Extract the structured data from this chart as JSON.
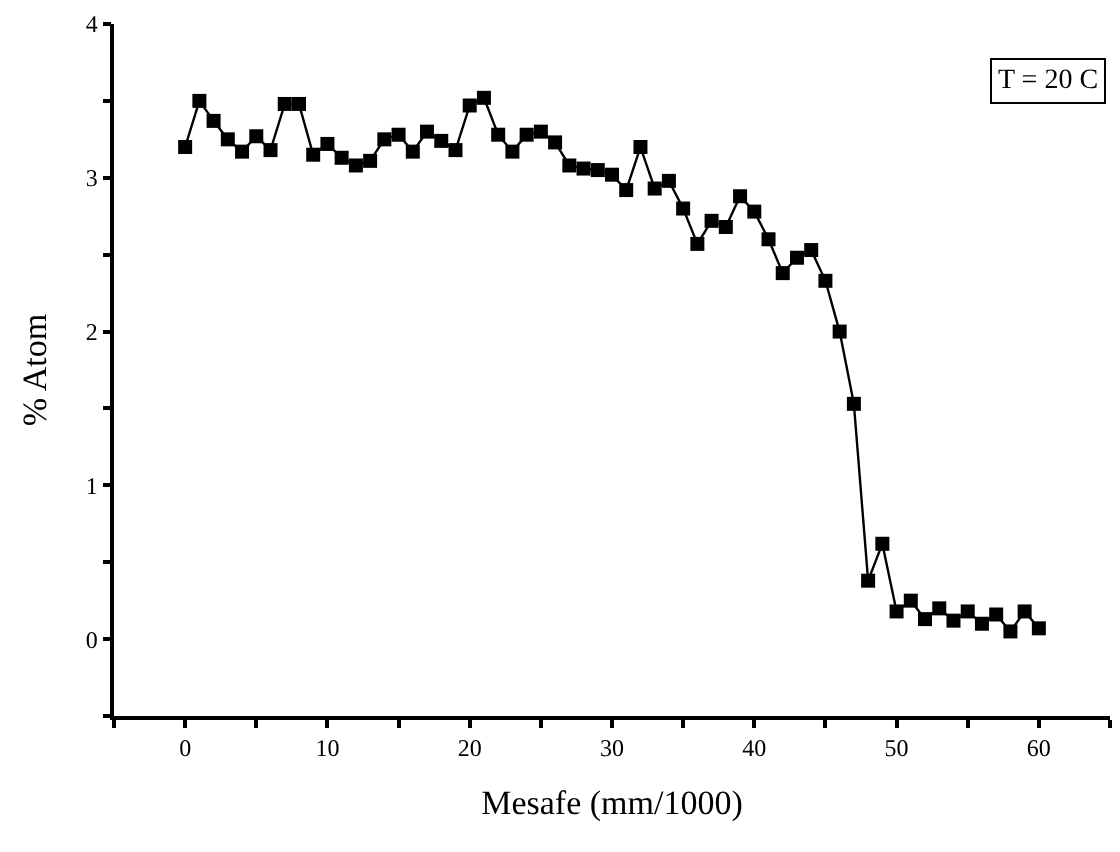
{
  "chart_data": {
    "type": "line",
    "xlabel": "Mesafe (mm/1000)",
    "ylabel": "% Atom",
    "annotations": [
      "T = 20 C"
    ],
    "x": [
      0,
      1,
      2,
      3,
      4,
      5,
      6,
      7,
      8,
      9,
      10,
      11,
      12,
      13,
      14,
      15,
      16,
      17,
      18,
      19,
      20,
      21,
      22,
      23,
      24,
      25,
      26,
      27,
      28,
      29,
      30,
      31,
      32,
      33,
      34,
      35,
      36,
      37,
      38,
      39,
      40,
      41,
      42,
      43,
      44,
      45,
      46,
      47,
      48,
      49,
      50,
      51,
      52,
      53,
      54,
      55,
      56,
      57,
      58,
      59,
      60
    ],
    "series": [
      {
        "color": "#000000",
        "values": [
          3.2,
          3.5,
          3.37,
          3.25,
          3.17,
          3.27,
          3.18,
          3.48,
          3.48,
          3.15,
          3.22,
          3.13,
          3.08,
          3.11,
          3.25,
          3.28,
          3.17,
          3.3,
          3.24,
          3.18,
          3.47,
          3.52,
          3.28,
          3.17,
          3.28,
          3.3,
          3.23,
          3.08,
          3.06,
          3.05,
          3.02,
          2.92,
          3.2,
          2.93,
          2.98,
          2.8,
          2.57,
          2.72,
          2.68,
          2.88,
          2.78,
          2.6,
          2.38,
          2.48,
          2.53,
          2.33,
          2.0,
          1.53,
          0.38,
          0.62,
          0.18,
          0.25,
          0.13,
          0.2,
          0.12,
          0.18,
          0.1,
          0.16,
          0.05,
          0.18,
          0.07
        ]
      }
    ],
    "marker": "square",
    "line_style": "solid",
    "xlim": [
      -5,
      65
    ],
    "xticks": [
      {
        "value": -5,
        "label": null
      },
      0,
      {
        "value": 5,
        "label": null
      },
      10,
      {
        "value": 15,
        "label": null
      },
      20,
      {
        "value": 25,
        "label": null
      },
      30,
      {
        "value": 35,
        "label": null
      },
      40,
      {
        "value": 45,
        "label": null
      },
      50,
      {
        "value": 55,
        "label": null
      },
      60,
      {
        "value": 65,
        "label": null
      }
    ],
    "ylim": [
      -0.5,
      4
    ],
    "yticks": [
      {
        "value": -0.5,
        "label": null
      },
      0,
      {
        "value": 0.5,
        "label": null
      },
      1,
      {
        "value": 1.5,
        "label": null
      },
      2,
      {
        "value": 2.5,
        "label": null
      },
      3,
      {
        "value": 3.5,
        "label": null
      },
      4
    ]
  }
}
